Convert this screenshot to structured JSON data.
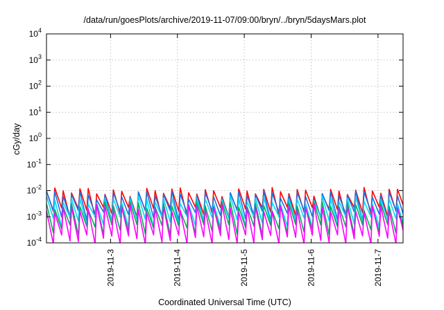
{
  "chart_data": {
    "type": "line",
    "title": "/data/run/goesPlots/archive/2019-11-07/09:00/bryn/../bryn/5daysMars.plot",
    "xlabel": "Coordinated Universal Time (UTC)",
    "ylabel": "cGy/day",
    "yscale": "log",
    "ylim": [
      0.0001,
      10000
    ],
    "xlim": [
      "2019-11-02T01:00",
      "2019-11-07T09:00"
    ],
    "grid": true,
    "x_ticks": [
      "2019-11-3",
      "2019-11-4",
      "2019-11-5",
      "2019-11-6",
      "2019-11-7"
    ],
    "y_ticks": [
      {
        "base": "10",
        "exp": "-4"
      },
      {
        "base": "10",
        "exp": "-3"
      },
      {
        "base": "10",
        "exp": "-2"
      },
      {
        "base": "10",
        "exp": "-1"
      },
      {
        "base": "10",
        "exp": "0"
      },
      {
        "base": "10",
        "exp": "1"
      },
      {
        "base": "10",
        "exp": "2"
      },
      {
        "base": "10",
        "exp": "3"
      },
      {
        "base": "10",
        "exp": "4"
      }
    ],
    "sawtooth_period_hours": 3,
    "series": [
      {
        "color": "#ff0000",
        "peak": 0.0095,
        "trough": 0.0016
      },
      {
        "color": "#1f6fe0",
        "peak": 0.0072,
        "trough": 0.0012
      },
      {
        "color": "#00d7ff",
        "peak": 0.0045,
        "trough": 0.0007
      },
      {
        "color": "#00b050",
        "peak": 0.0028,
        "trough": 0.00035
      },
      {
        "color": "#ff00ff",
        "peak": 0.0022,
        "trough": 0.00014
      }
    ]
  }
}
